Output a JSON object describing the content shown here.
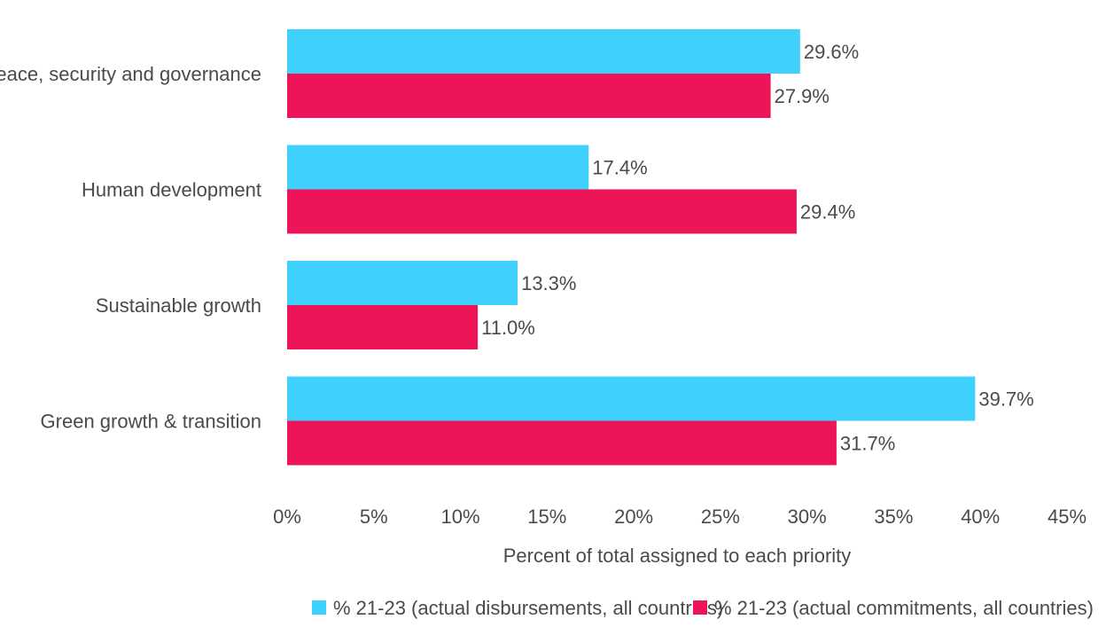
{
  "chart_data": {
    "type": "bar",
    "orientation": "horizontal",
    "categories": [
      "Peace, security and governance",
      "Human development",
      "Sustainable growth",
      "Green growth & transition"
    ],
    "series": [
      {
        "name": "% 21-23 (actual disbursements, all countries)",
        "color": "#40d0fc",
        "values": [
          29.6,
          17.4,
          13.3,
          39.7
        ],
        "labels": [
          "29.6%",
          "17.4%",
          "13.3%",
          "39.7%"
        ]
      },
      {
        "name": "% 21-23 (actual commitments, all countries)",
        "color": "#ee1458",
        "values": [
          27.9,
          29.4,
          11.0,
          31.7
        ],
        "labels": [
          "27.9%",
          "29.4%",
          "11.0%",
          "31.7%"
        ]
      }
    ],
    "xlim": [
      0,
      45
    ],
    "xticks": [
      0,
      5,
      10,
      15,
      20,
      25,
      30,
      35,
      40,
      45
    ],
    "xtick_labels": [
      "0%",
      "5%",
      "10%",
      "15%",
      "20%",
      "25%",
      "30%",
      "35%",
      "40%",
      "45%"
    ],
    "xlabel": "Percent of total assigned to each priority",
    "ylabel": "",
    "title": "",
    "grid": false,
    "legend_position": "bottom"
  }
}
